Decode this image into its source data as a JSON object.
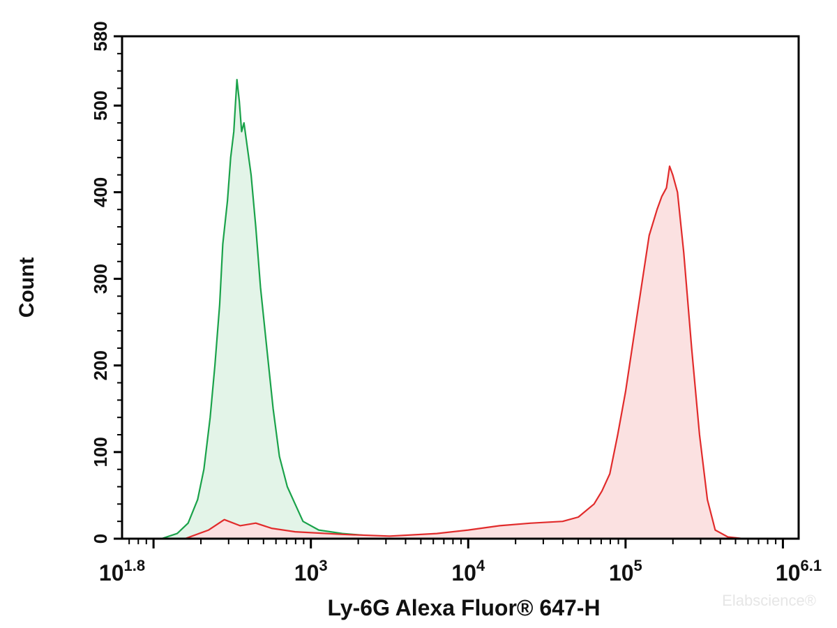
{
  "chart_data": {
    "type": "area",
    "x_scale": "log10",
    "xlim": [
      1.8,
      6.1
    ],
    "ylim": [
      0,
      580
    ],
    "xlabel": "Ly-6G Alexa Fluor® 647-H",
    "ylabel": "Count",
    "grid": false,
    "legend": "none",
    "y_ticks": [
      0,
      100,
      200,
      300,
      400,
      500,
      580
    ],
    "y_tick_labels": [
      "0",
      "100",
      "200",
      "300",
      "400",
      "500",
      "580"
    ],
    "x_ticks": [
      {
        "exp": 1.8,
        "base": "10",
        "sup": "1.8"
      },
      {
        "exp": 3,
        "base": "10",
        "sup": "3"
      },
      {
        "exp": 4,
        "base": "10",
        "sup": "4"
      },
      {
        "exp": 5,
        "base": "10",
        "sup": "5"
      },
      {
        "exp": 6.1,
        "base": "10",
        "sup": "6.1"
      }
    ],
    "series": [
      {
        "color": "#1aa24a",
        "fill": "#e3f4e8",
        "points": [
          [
            2.05,
            0
          ],
          [
            2.15,
            6
          ],
          [
            2.22,
            18
          ],
          [
            2.28,
            45
          ],
          [
            2.32,
            80
          ],
          [
            2.36,
            140
          ],
          [
            2.39,
            200
          ],
          [
            2.42,
            270
          ],
          [
            2.44,
            340
          ],
          [
            2.47,
            390
          ],
          [
            2.49,
            440
          ],
          [
            2.51,
            470
          ],
          [
            2.52,
            500
          ],
          [
            2.53,
            530
          ],
          [
            2.545,
            505
          ],
          [
            2.56,
            470
          ],
          [
            2.575,
            480
          ],
          [
            2.59,
            460
          ],
          [
            2.62,
            420
          ],
          [
            2.65,
            360
          ],
          [
            2.68,
            290
          ],
          [
            2.72,
            220
          ],
          [
            2.76,
            150
          ],
          [
            2.8,
            95
          ],
          [
            2.85,
            60
          ],
          [
            2.9,
            40
          ],
          [
            2.95,
            20
          ],
          [
            3.05,
            10
          ],
          [
            3.2,
            6
          ],
          [
            3.4,
            3
          ],
          [
            3.6,
            1
          ],
          [
            3.8,
            0
          ]
        ]
      },
      {
        "color": "#e12b2b",
        "fill": "#fbe1e1",
        "points": [
          [
            2.2,
            0
          ],
          [
            2.35,
            10
          ],
          [
            2.45,
            22
          ],
          [
            2.55,
            15
          ],
          [
            2.65,
            18
          ],
          [
            2.75,
            12
          ],
          [
            2.9,
            8
          ],
          [
            3.2,
            5
          ],
          [
            3.5,
            3
          ],
          [
            3.8,
            6
          ],
          [
            4.0,
            10
          ],
          [
            4.2,
            15
          ],
          [
            4.4,
            18
          ],
          [
            4.6,
            20
          ],
          [
            4.7,
            25
          ],
          [
            4.8,
            40
          ],
          [
            4.85,
            55
          ],
          [
            4.9,
            75
          ],
          [
            4.95,
            120
          ],
          [
            5.0,
            170
          ],
          [
            5.05,
            230
          ],
          [
            5.1,
            290
          ],
          [
            5.15,
            350
          ],
          [
            5.2,
            380
          ],
          [
            5.23,
            395
          ],
          [
            5.26,
            405
          ],
          [
            5.28,
            430
          ],
          [
            5.3,
            420
          ],
          [
            5.33,
            400
          ],
          [
            5.37,
            330
          ],
          [
            5.42,
            220
          ],
          [
            5.47,
            120
          ],
          [
            5.52,
            45
          ],
          [
            5.57,
            10
          ],
          [
            5.65,
            2
          ],
          [
            5.75,
            0
          ]
        ]
      }
    ]
  },
  "watermark": "Elabscience®"
}
